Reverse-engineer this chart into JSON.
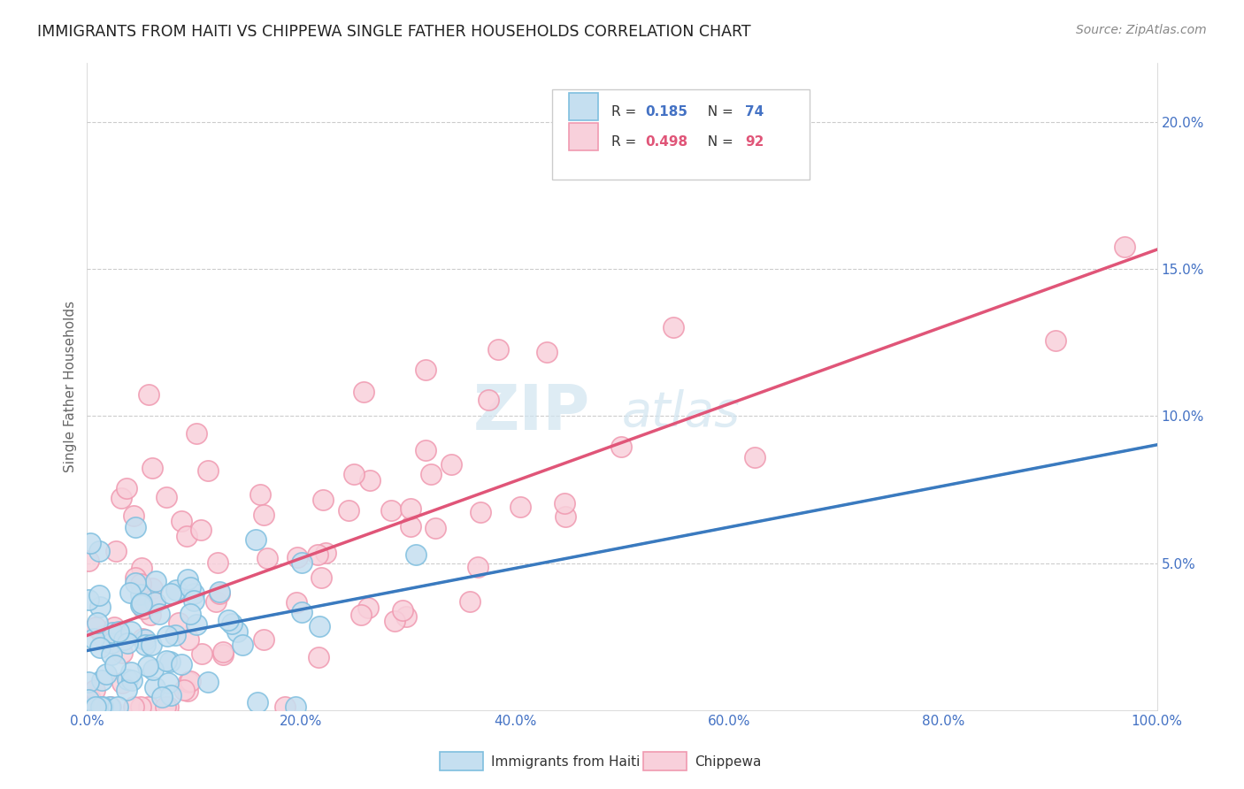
{
  "title": "IMMIGRANTS FROM HAITI VS CHIPPEWA SINGLE FATHER HOUSEHOLDS CORRELATION CHART",
  "source": "Source: ZipAtlas.com",
  "ylabel": "Single Father Households",
  "xlim": [
    0.0,
    1.0
  ],
  "ylim": [
    0.0,
    0.22
  ],
  "x_ticks": [
    0.0,
    0.2,
    0.4,
    0.6,
    0.8,
    1.0
  ],
  "x_tick_labels": [
    "0.0%",
    "20.0%",
    "40.0%",
    "60.0%",
    "80.0%",
    "100.0%"
  ],
  "y_ticks": [
    0.0,
    0.05,
    0.1,
    0.15,
    0.2
  ],
  "y_tick_labels": [
    "",
    "5.0%",
    "10.0%",
    "15.0%",
    "20.0%"
  ],
  "haiti_color": "#7fbfdf",
  "haiti_fill": "#c5dff0",
  "chippewa_color": "#f099b0",
  "chippewa_fill": "#f8d0db",
  "haiti_R": 0.185,
  "haiti_N": 74,
  "chippewa_R": 0.498,
  "chippewa_N": 92,
  "legend_label_haiti": "Immigrants from Haiti",
  "legend_label_chippewa": "Chippewa",
  "background_color": "#ffffff",
  "tick_color": "#4472c4",
  "ylabel_color": "#666666",
  "title_color": "#222222",
  "source_color": "#888888",
  "grid_color": "#cccccc",
  "haiti_line_color": "#3a7abf",
  "haiti_dash_color": "#7fbfdf",
  "chippewa_line_color": "#e05578",
  "watermark_color": "#d0e4f0"
}
